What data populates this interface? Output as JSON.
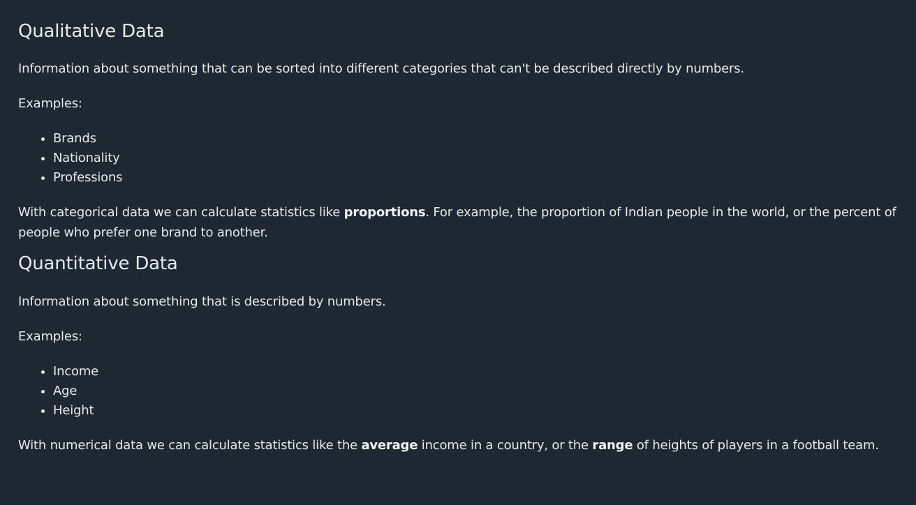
{
  "qualitative": {
    "title": "Qualitative Data",
    "description": "Information about something that can be sorted into different categories that can't be described directly by numbers.",
    "examples_label": "Examples:",
    "examples": [
      "Brands",
      "Nationality",
      "Professions"
    ],
    "para_before": "With categorical data we can calculate statistics like ",
    "para_bold": "proportions",
    "para_after": ". For example, the proportion of Indian people in the world, or the percent of people who prefer one brand to another."
  },
  "quantitative": {
    "title": "Quantitative Data",
    "description": "Information about something that is described by numbers.",
    "examples_label": "Examples:",
    "examples": [
      "Income",
      "Age",
      "Height"
    ],
    "para_before": "With numerical data we can calculate statistics like the ",
    "para_bold1": "average",
    "para_mid": " income in a country, or the ",
    "para_bold2": "range",
    "para_after": " of heights of players in a football team."
  }
}
